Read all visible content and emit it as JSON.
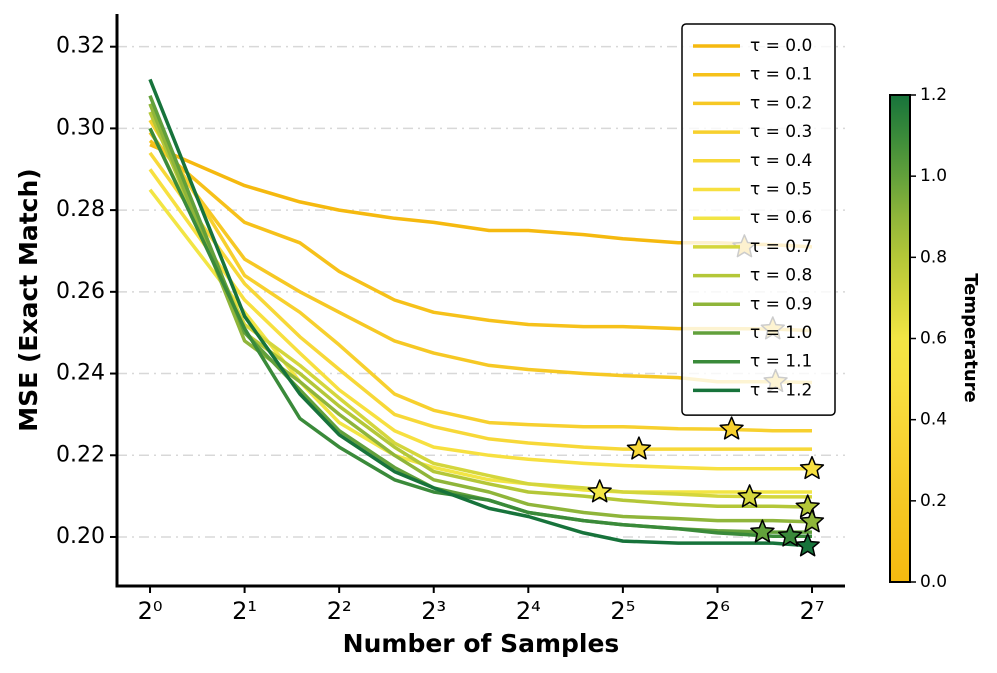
{
  "chart_data": {
    "type": "line",
    "xlabel": "Number of Samples",
    "ylabel": "MSE (Exact Match)",
    "x": [
      1,
      2,
      3,
      4,
      6,
      8,
      12,
      16,
      24,
      32,
      48,
      64,
      96,
      128
    ],
    "xscale": "log2",
    "xlim": [
      0.785,
      163
    ],
    "xticks": [
      {
        "value": 1,
        "label": "2⁰"
      },
      {
        "value": 2,
        "label": "2¹"
      },
      {
        "value": 4,
        "label": "2²"
      },
      {
        "value": 8,
        "label": "2³"
      },
      {
        "value": 16,
        "label": "2⁴"
      },
      {
        "value": 32,
        "label": "2⁵"
      },
      {
        "value": 64,
        "label": "2⁶"
      },
      {
        "value": 128,
        "label": "2⁷"
      }
    ],
    "ylim": [
      0.188,
      0.328
    ],
    "yticks": [
      {
        "value": 0.2,
        "label": "0.20"
      },
      0.22,
      0.24,
      0.26,
      0.28,
      {
        "value": 0.3,
        "label": "0.30"
      },
      0.32
    ],
    "grid": true,
    "legend": "upper right",
    "series": [
      {
        "name": "τ = 0.0",
        "color": "#f5b90f",
        "values": [
          0.296,
          0.286,
          0.282,
          0.28,
          0.278,
          0.277,
          0.275,
          0.275,
          0.274,
          0.273,
          0.272,
          0.272,
          0.2715,
          0.271
        ],
        "best_x": 78,
        "best_y": 0.271
      },
      {
        "name": "τ = 0.1",
        "color": "#f6c11a",
        "values": [
          0.297,
          0.277,
          0.272,
          0.265,
          0.258,
          0.255,
          0.253,
          0.252,
          0.2515,
          0.2515,
          0.251,
          0.251,
          0.2509,
          0.2505
        ],
        "best_x": 96,
        "best_y": 0.2509
      },
      {
        "name": "τ = 0.2",
        "color": "#f6c824",
        "values": [
          0.299,
          0.268,
          0.26,
          0.255,
          0.248,
          0.245,
          0.242,
          0.241,
          0.24,
          0.2395,
          0.239,
          0.238,
          0.238,
          0.2378
        ],
        "best_x": 98,
        "best_y": 0.238
      },
      {
        "name": "τ = 0.3",
        "color": "#f7d02e",
        "values": [
          0.302,
          0.264,
          0.255,
          0.247,
          0.235,
          0.231,
          0.228,
          0.2275,
          0.227,
          0.227,
          0.2265,
          0.2264,
          0.226,
          0.226
        ],
        "best_x": 71,
        "best_y": 0.2264
      },
      {
        "name": "τ = 0.4",
        "color": "#f7d838",
        "values": [
          0.294,
          0.262,
          0.249,
          0.241,
          0.23,
          0.227,
          0.224,
          0.223,
          0.222,
          0.2215,
          0.2215,
          0.2215,
          0.2215,
          0.2215
        ],
        "best_x": 36,
        "best_y": 0.2215
      },
      {
        "name": "τ = 0.5",
        "color": "#f7e040",
        "values": [
          0.29,
          0.258,
          0.245,
          0.236,
          0.226,
          0.222,
          0.22,
          0.219,
          0.218,
          0.2175,
          0.217,
          0.2167,
          0.2167,
          0.2167
        ],
        "best_x": 128,
        "best_y": 0.2167
      },
      {
        "name": "τ = 0.6",
        "color": "#f2e544",
        "values": [
          0.285,
          0.255,
          0.238,
          0.228,
          0.22,
          0.217,
          0.214,
          0.213,
          0.2115,
          0.211,
          0.211,
          0.211,
          0.211,
          0.211
        ],
        "best_x": 27,
        "best_y": 0.211
      },
      {
        "name": "τ = 0.7",
        "color": "#d4d63c",
        "values": [
          0.3,
          0.252,
          0.242,
          0.234,
          0.223,
          0.218,
          0.215,
          0.213,
          0.212,
          0.211,
          0.2105,
          0.21,
          0.2098,
          0.2098
        ],
        "best_x": 81,
        "best_y": 0.2098
      },
      {
        "name": "τ = 0.8",
        "color": "#b4c738",
        "values": [
          0.304,
          0.25,
          0.24,
          0.232,
          0.222,
          0.216,
          0.213,
          0.211,
          0.21,
          0.209,
          0.208,
          0.2075,
          0.2075,
          0.2073
        ],
        "best_x": 124,
        "best_y": 0.2073
      },
      {
        "name": "τ = 0.9",
        "color": "#8fb53a",
        "values": [
          0.306,
          0.248,
          0.238,
          0.23,
          0.22,
          0.214,
          0.211,
          0.208,
          0.206,
          0.205,
          0.2045,
          0.204,
          0.204,
          0.2037
        ],
        "best_x": 128,
        "best_y": 0.2037
      },
      {
        "name": "τ = 1.0",
        "color": "#62a03b",
        "values": [
          0.308,
          0.25,
          0.236,
          0.226,
          0.217,
          0.212,
          0.209,
          0.206,
          0.204,
          0.203,
          0.202,
          0.2015,
          0.2012,
          0.2012
        ],
        "best_x": 89,
        "best_y": 0.2012
      },
      {
        "name": "τ = 1.1",
        "color": "#3a8a3a",
        "values": [
          0.3,
          0.251,
          0.229,
          0.222,
          0.214,
          0.211,
          0.209,
          0.206,
          0.204,
          0.203,
          0.202,
          0.201,
          0.2002,
          0.2002
        ],
        "best_x": 109,
        "best_y": 0.2002
      },
      {
        "name": "τ = 1.2",
        "color": "#17733b",
        "values": [
          0.312,
          0.254,
          0.235,
          0.225,
          0.216,
          0.212,
          0.207,
          0.205,
          0.201,
          0.199,
          0.1985,
          0.1985,
          0.1985,
          0.1978
        ],
        "best_x": 124,
        "best_y": 0.1978
      }
    ],
    "colorbar": {
      "label": "Temperature",
      "lim": [
        0,
        1.2
      ],
      "ticks": [
        {
          "value": 0,
          "label": "0.0"
        },
        0.2,
        0.4,
        0.6,
        0.8,
        {
          "value": 1,
          "label": "1.0"
        },
        1.2
      ]
    }
  }
}
